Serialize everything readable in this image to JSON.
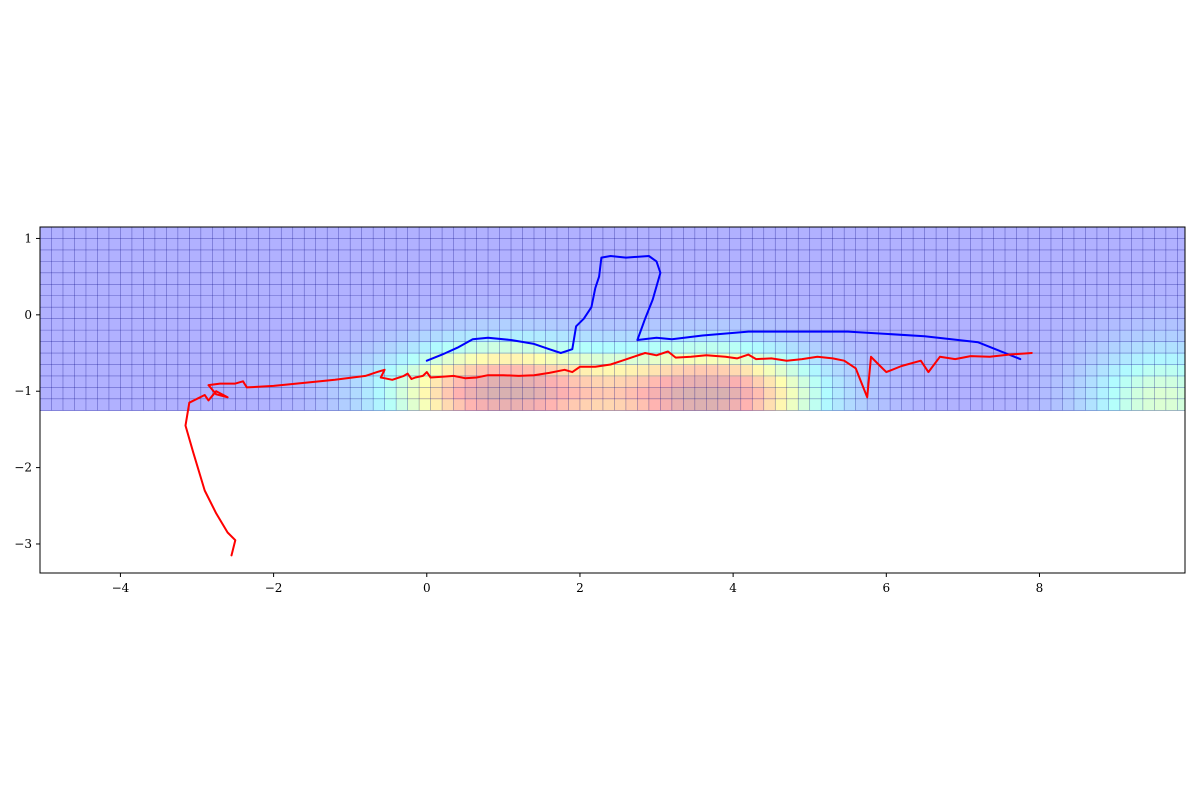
{
  "chart_data": {
    "type": "line",
    "title": "",
    "xlabel": "",
    "ylabel": "",
    "xlim": [
      -5.05,
      9.9
    ],
    "ylim": [
      -3.38,
      1.15
    ],
    "xticks": [
      -4,
      -2,
      0,
      2,
      4,
      6,
      8
    ],
    "yticks": [
      1,
      0,
      -1,
      -2,
      -3
    ],
    "xtick_labels": [
      "−4",
      "−2",
      "0",
      "2",
      "4",
      "6",
      "8"
    ],
    "ytick_labels": [
      "1",
      "0",
      "−1",
      "−2",
      "−3"
    ],
    "grid": true,
    "legend": "none",
    "background_map": {
      "type": "heatmap",
      "colormap": "jet",
      "opacity": 0.3,
      "x_range": [
        -5.05,
        9.9
      ],
      "y_range": [
        -1.25,
        1.15
      ],
      "grid_step": 0.15,
      "hotspots": [
        {
          "x": 1.0,
          "y": -1.0,
          "sx": 1.0,
          "sy": 0.42,
          "amp": 1.0
        },
        {
          "x": 3.7,
          "y": -1.05,
          "sx": 0.95,
          "sy": 0.42,
          "amp": 1.0
        },
        {
          "x": 9.6,
          "y": -1.1,
          "sx": 0.7,
          "sy": 0.5,
          "amp": 0.45
        }
      ],
      "colors": {
        "low": "#0000ff",
        "mid_low": "#00ffff",
        "mid": "#ffff00",
        "high": "#ff0000",
        "grid_line": "#000080"
      }
    },
    "series": [
      {
        "color": "#0000ff",
        "points": [
          [
            0.0,
            -0.6
          ],
          [
            0.2,
            -0.52
          ],
          [
            0.4,
            -0.43
          ],
          [
            0.6,
            -0.32
          ],
          [
            0.8,
            -0.3
          ],
          [
            1.1,
            -0.33
          ],
          [
            1.4,
            -0.38
          ],
          [
            1.6,
            -0.45
          ],
          [
            1.75,
            -0.5
          ],
          [
            1.9,
            -0.45
          ],
          [
            1.95,
            -0.15
          ],
          [
            2.05,
            -0.05
          ],
          [
            2.15,
            0.1
          ],
          [
            2.2,
            0.35
          ],
          [
            2.25,
            0.5
          ],
          [
            2.28,
            0.75
          ],
          [
            2.4,
            0.77
          ],
          [
            2.6,
            0.75
          ],
          [
            2.9,
            0.77
          ],
          [
            3.0,
            0.7
          ],
          [
            3.05,
            0.55
          ],
          [
            2.95,
            0.2
          ],
          [
            2.85,
            -0.05
          ],
          [
            2.75,
            -0.33
          ],
          [
            3.0,
            -0.3
          ],
          [
            3.2,
            -0.32
          ],
          [
            3.6,
            -0.27
          ],
          [
            4.2,
            -0.22
          ],
          [
            5.5,
            -0.22
          ],
          [
            6.5,
            -0.28
          ],
          [
            7.2,
            -0.36
          ],
          [
            7.75,
            -0.58
          ]
        ]
      },
      {
        "color": "#ff0000",
        "points": [
          [
            -2.55,
            -3.15
          ],
          [
            -2.5,
            -2.95
          ],
          [
            -2.6,
            -2.85
          ],
          [
            -2.75,
            -2.6
          ],
          [
            -2.9,
            -2.3
          ],
          [
            -3.05,
            -1.8
          ],
          [
            -3.15,
            -1.45
          ],
          [
            -3.1,
            -1.15
          ],
          [
            -2.9,
            -1.05
          ],
          [
            -2.85,
            -1.12
          ],
          [
            -2.75,
            -1.0
          ],
          [
            -2.6,
            -1.08
          ],
          [
            -2.75,
            -1.04
          ],
          [
            -2.85,
            -0.92
          ],
          [
            -2.7,
            -0.9
          ],
          [
            -2.5,
            -0.9
          ],
          [
            -2.4,
            -0.87
          ],
          [
            -2.35,
            -0.95
          ],
          [
            -2.0,
            -0.93
          ],
          [
            -1.2,
            -0.85
          ],
          [
            -0.8,
            -0.8
          ],
          [
            -0.65,
            -0.75
          ],
          [
            -0.55,
            -0.72
          ],
          [
            -0.6,
            -0.82
          ],
          [
            -0.45,
            -0.85
          ],
          [
            -0.3,
            -0.8
          ],
          [
            -0.25,
            -0.77
          ],
          [
            -0.2,
            -0.84
          ],
          [
            -0.15,
            -0.82
          ],
          [
            -0.05,
            -0.8
          ],
          [
            0.0,
            -0.75
          ],
          [
            0.05,
            -0.82
          ],
          [
            0.2,
            -0.81
          ],
          [
            0.35,
            -0.8
          ],
          [
            0.5,
            -0.83
          ],
          [
            0.65,
            -0.82
          ],
          [
            0.8,
            -0.79
          ],
          [
            1.0,
            -0.79
          ],
          [
            1.2,
            -0.8
          ],
          [
            1.4,
            -0.79
          ],
          [
            1.6,
            -0.76
          ],
          [
            1.8,
            -0.72
          ],
          [
            1.9,
            -0.75
          ],
          [
            2.0,
            -0.68
          ],
          [
            2.2,
            -0.68
          ],
          [
            2.4,
            -0.65
          ],
          [
            2.55,
            -0.6
          ],
          [
            2.7,
            -0.55
          ],
          [
            2.85,
            -0.5
          ],
          [
            3.0,
            -0.53
          ],
          [
            3.15,
            -0.48
          ],
          [
            3.25,
            -0.56
          ],
          [
            3.45,
            -0.55
          ],
          [
            3.65,
            -0.53
          ],
          [
            3.9,
            -0.55
          ],
          [
            4.05,
            -0.57
          ],
          [
            4.2,
            -0.52
          ],
          [
            4.3,
            -0.58
          ],
          [
            4.5,
            -0.57
          ],
          [
            4.7,
            -0.6
          ],
          [
            4.9,
            -0.58
          ],
          [
            5.1,
            -0.55
          ],
          [
            5.3,
            -0.57
          ],
          [
            5.45,
            -0.6
          ],
          [
            5.6,
            -0.7
          ],
          [
            5.75,
            -1.08
          ],
          [
            5.8,
            -0.55
          ],
          [
            5.9,
            -0.65
          ],
          [
            6.0,
            -0.75
          ],
          [
            6.2,
            -0.67
          ],
          [
            6.45,
            -0.6
          ],
          [
            6.55,
            -0.75
          ],
          [
            6.7,
            -0.55
          ],
          [
            6.9,
            -0.58
          ],
          [
            7.1,
            -0.54
          ],
          [
            7.35,
            -0.55
          ],
          [
            7.6,
            -0.52
          ],
          [
            7.9,
            -0.5
          ]
        ]
      }
    ]
  }
}
